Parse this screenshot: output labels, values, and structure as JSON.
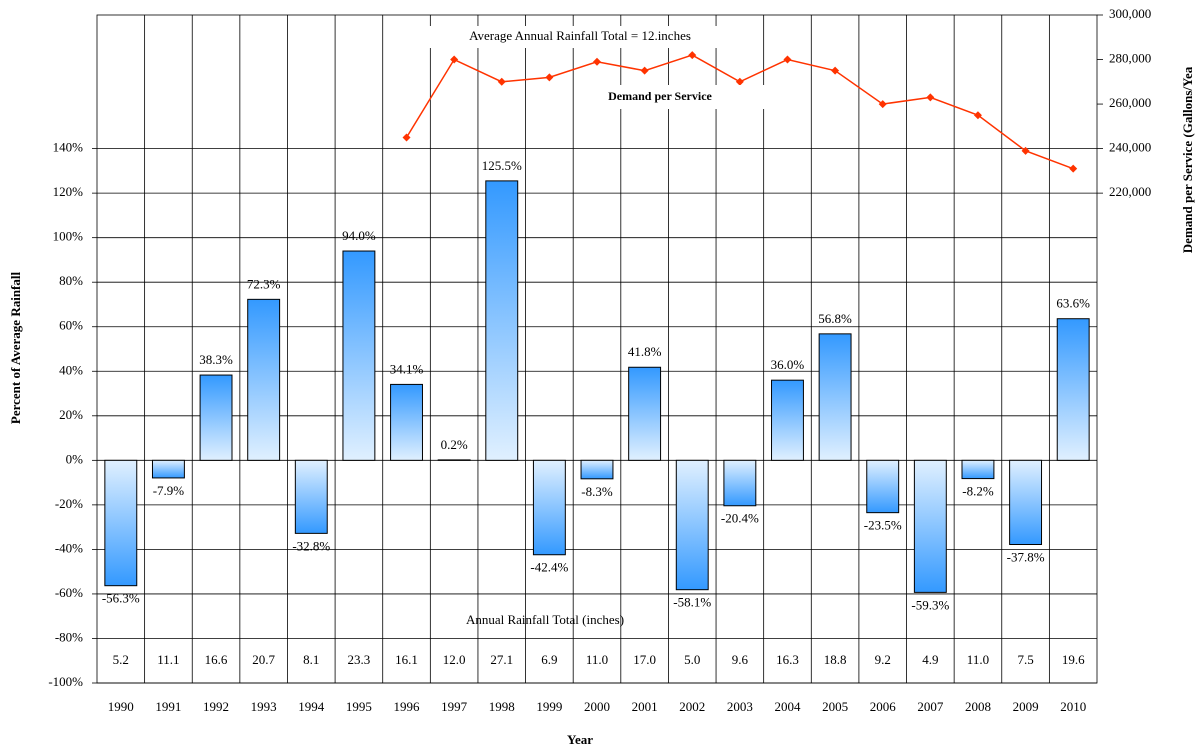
{
  "chart_data": {
    "type": "bar",
    "annotation": "Average Annual Rainfall Total = 12.inches",
    "y_label": "Percent of Average Rainfall",
    "y2_label": "Demand per Service (Gallons/Yea",
    "x_label": "Year",
    "categories": [
      "1990",
      "1991",
      "1992",
      "1993",
      "1994",
      "1995",
      "1996",
      "1997",
      "1998",
      "1999",
      "2000",
      "2001",
      "2002",
      "2003",
      "2004",
      "2005",
      "2006",
      "2007",
      "2008",
      "2009",
      "2010"
    ],
    "series": [
      {
        "type": "bar",
        "color": "#3399ff",
        "values": [
          -56.3,
          -7.9,
          38.3,
          72.3,
          -32.8,
          94.0,
          34.1,
          0.2,
          125.5,
          -42.4,
          -8.3,
          41.8,
          -58.1,
          -20.4,
          36.0,
          56.8,
          -23.5,
          -59.3,
          -8.2,
          -37.8,
          63.6
        ],
        "value_labels": [
          "-56.3%",
          "-7.9%",
          "38.3%",
          "72.3%",
          "-32.8%",
          "94.0%",
          "34.1%",
          "0.2%",
          "125.5%",
          "-42.4%",
          "-8.3%",
          "41.8%",
          "-58.1%",
          "-20.4%",
          "36.0%",
          "56.8%",
          "-23.5%",
          "-59.3%",
          "-8.2%",
          "-37.8%",
          "63.6%"
        ]
      },
      {
        "type": "line",
        "axis": "y2",
        "name": "Demand per Service",
        "color": "#ff3300",
        "values": [
          null,
          null,
          null,
          null,
          null,
          null,
          245000,
          280000,
          270000,
          272000,
          279000,
          275000,
          282000,
          270000,
          280000,
          275000,
          260000,
          263000,
          255000,
          239000,
          231000
        ]
      }
    ],
    "rainfall": {
      "label": "Annual Rainfall Total (inches)",
      "values": [
        5.2,
        11.1,
        16.6,
        20.7,
        8.1,
        23.3,
        16.1,
        12.0,
        27.1,
        6.9,
        11.0,
        17.0,
        5.0,
        9.6,
        16.3,
        18.8,
        9.2,
        4.9,
        11.0,
        7.5,
        19.6
      ],
      "value_labels": [
        "5.2",
        "11.1",
        "16.6",
        "20.7",
        "8.1",
        "23.3",
        "16.1",
        "12.0",
        "27.1",
        "6.9",
        "11.0",
        "17.0",
        "5.0",
        "9.6",
        "16.3",
        "18.8",
        "9.2",
        "4.9",
        "11.0",
        "7.5",
        "19.6"
      ]
    },
    "ylim": [
      -100,
      200
    ],
    "yticks": [
      {
        "value": -100,
        "label": "-100%"
      },
      {
        "value": -80,
        "label": "-80%"
      },
      {
        "value": -60,
        "label": "-60%"
      },
      {
        "value": -40,
        "label": "-40%"
      },
      {
        "value": -20,
        "label": "-20%"
      },
      {
        "value": 0,
        "label": "0%"
      },
      {
        "value": 20,
        "label": "20%"
      },
      {
        "value": 40,
        "label": "40%"
      },
      {
        "value": 60,
        "label": "60%"
      },
      {
        "value": 80,
        "label": "80%"
      },
      {
        "value": 100,
        "label": "100%"
      },
      {
        "value": 120,
        "label": "120%"
      },
      {
        "value": 140,
        "label": "140%"
      }
    ],
    "y2lim": [
      0,
      300000
    ],
    "y2ticks": [
      {
        "value": 220000,
        "label": "220,000"
      },
      {
        "value": 240000,
        "label": "240,000"
      },
      {
        "value": 260000,
        "label": "260,000"
      },
      {
        "value": 280000,
        "label": "280,000"
      },
      {
        "value": 300000,
        "label": "300,000"
      }
    ],
    "grid": true
  }
}
